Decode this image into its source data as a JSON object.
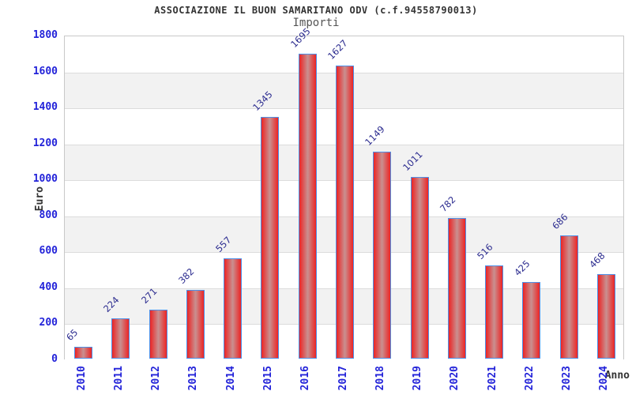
{
  "chart_data": {
    "type": "bar",
    "title": "ASSOCIAZIONE IL BUON SAMARITANO ODV (c.f.94558790013)",
    "subtitle": "Importi",
    "xlabel": "Anno",
    "ylabel": "Euro",
    "categories": [
      "2010",
      "2011",
      "2012",
      "2013",
      "2014",
      "2015",
      "2016",
      "2017",
      "2018",
      "2019",
      "2020",
      "2021",
      "2022",
      "2023",
      "2024"
    ],
    "values": [
      65,
      224,
      271,
      382,
      557,
      1345,
      1695,
      1627,
      1149,
      1011,
      782,
      516,
      425,
      686,
      468
    ],
    "ylim": [
      0,
      1800
    ],
    "ytick_step": 200,
    "yticks": [
      0,
      200,
      400,
      600,
      800,
      1000,
      1200,
      1400,
      1600,
      1800
    ],
    "grid": "horizontal-every-200, alternating background bands",
    "legend": "none",
    "colors": {
      "bar_edge": "#ec2424",
      "bar_center": "#c99090",
      "bar_border": "#4d90e8",
      "tick_label": "#2323d9",
      "value_label": "#2b2b8f",
      "band_alt": "#f2f2f2",
      "grid_line": "#dcdcdc",
      "plot_border": "#c8c8c8",
      "title_color": "#333333",
      "subtitle_color": "#555555"
    }
  }
}
